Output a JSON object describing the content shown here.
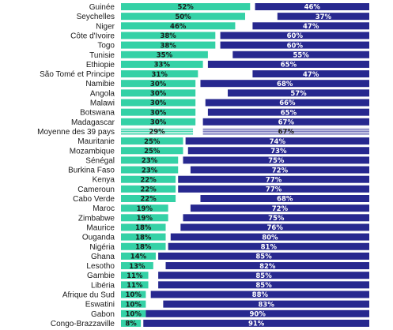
{
  "chart_data": {
    "type": "bar",
    "orientation": "horizontal",
    "stacked": true,
    "colors": {
      "left": "#34d1a6",
      "right": "#27288f",
      "average_right": "#5050a8"
    },
    "categories": [
      "Guinée",
      "Seychelles",
      "Niger",
      "Côte d'Ivoire",
      "Togo",
      "Tunisie",
      "Ethiopie",
      "São Tomé et Principe",
      "Namibie",
      "Angola",
      "Malawi",
      "Botswana",
      "Madagascar",
      "Moyenne des 39 pays",
      "Mauritanie",
      "Mozambique",
      "Sénégal",
      "Burkina Faso",
      "Kenya",
      "Cameroun",
      "Cabo Verde",
      "Maroc",
      "Zimbabwe",
      "Maurice",
      "Ouganda",
      "Nigéria",
      "Ghana",
      "Lesotho",
      "Gambie",
      "Libéria",
      "Afrique du Sud",
      "Eswatini",
      "Gabon",
      "Congo-Brazzaville"
    ],
    "series": [
      {
        "values": [
          52,
          50,
          46,
          38,
          38,
          35,
          33,
          31,
          30,
          30,
          30,
          30,
          30,
          29,
          25,
          25,
          23,
          23,
          22,
          22,
          22,
          19,
          19,
          18,
          18,
          18,
          14,
          13,
          11,
          11,
          10,
          10,
          10,
          8
        ],
        "labels": [
          "52%",
          "50%",
          "46%",
          "38%",
          "38%",
          "35%",
          "33%",
          "31%",
          "30%",
          "30%",
          "30%",
          "30%",
          "30%",
          "29%",
          "25%",
          "25%",
          "23%",
          "23%",
          "22%",
          "22%",
          "22%",
          "19%",
          "19%",
          "18%",
          "18%",
          "18%",
          "14%",
          "13%",
          "11%",
          "11%",
          "10%",
          "10%",
          "10%",
          "8%"
        ]
      },
      {
        "values": [
          46,
          37,
          47,
          60,
          60,
          55,
          65,
          47,
          68,
          57,
          66,
          65,
          67,
          67,
          74,
          73,
          75,
          72,
          77,
          77,
          68,
          72,
          75,
          76,
          80,
          81,
          85,
          82,
          85,
          85,
          88,
          83,
          90,
          91
        ],
        "labels": [
          "46%",
          "37%",
          "47%",
          "60%",
          "60%",
          "55%",
          "65%",
          "47%",
          "68%",
          "57%",
          "66%",
          "65%",
          "67%",
          "67%",
          "74%",
          "73%",
          "75%",
          "72%",
          "77%",
          "77%",
          "68%",
          "72%",
          "75%",
          "76%",
          "80%",
          "81%",
          "85%",
          "82%",
          "85%",
          "85%",
          "88%",
          "83%",
          "90%",
          "91%"
        ]
      }
    ],
    "average_category": "Moyenne des 39 pays",
    "xlim": [
      0,
      100
    ]
  }
}
